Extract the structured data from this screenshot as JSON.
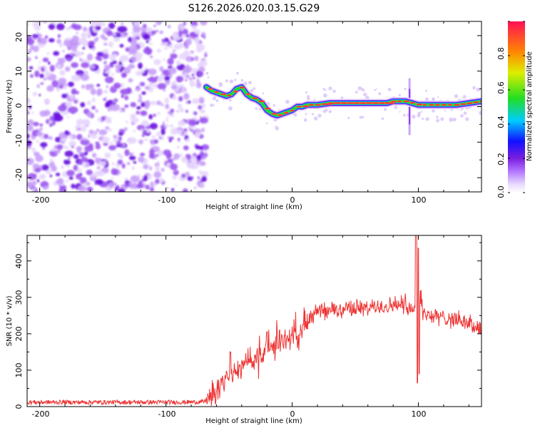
{
  "title": "S126.2026.020.03.15.G29",
  "chart_data": [
    {
      "type": "heatmap",
      "xlabel": "Height of straight line (km)",
      "ylabel": "Frequency (Hz)",
      "xlim": [
        -210,
        150
      ],
      "ylim": [
        -24,
        24
      ],
      "xticks": [
        "-200",
        "-100",
        "0",
        "100"
      ],
      "yticks": [
        "-20",
        "-10",
        "0",
        "10",
        "20"
      ],
      "noise_region_x": [
        -210,
        -68
      ],
      "ridge": {
        "x": [
          -68,
          -64,
          -60,
          -56,
          -52,
          -48,
          -44,
          -40,
          -36,
          -32,
          -28,
          -24,
          -20,
          -16,
          -12,
          -8,
          -4,
          0,
          4,
          8,
          12,
          16,
          20,
          30,
          40,
          50,
          60,
          70,
          75,
          80,
          85,
          90,
          95,
          100,
          105,
          110,
          120,
          130,
          140,
          150
        ],
        "y": [
          5.5,
          4.5,
          4.0,
          3.5,
          3.0,
          3.5,
          5.0,
          5.5,
          3.5,
          2.5,
          2.0,
          1.0,
          -1.0,
          -2.0,
          -2.5,
          -2.0,
          -1.5,
          -1.0,
          0.0,
          0.0,
          0.5,
          0.5,
          0.5,
          1.0,
          1.0,
          1.0,
          1.0,
          1.0,
          1.0,
          1.5,
          1.5,
          1.5,
          1.0,
          0.5,
          0.5,
          0.5,
          0.5,
          0.5,
          1.0,
          1.5
        ]
      },
      "colorbar": {
        "label": "Normalized spectral amplitude",
        "range": [
          0.0,
          1.0
        ],
        "ticks": [
          "0.0",
          "0.2",
          "0.4",
          "0.6",
          "0.8"
        ]
      }
    },
    {
      "type": "line",
      "xlabel": "Height of straight line (km)",
      "ylabel": "SNR (10 * v/v)",
      "xlim": [
        -210,
        150
      ],
      "ylim": [
        0,
        470
      ],
      "xticks": [
        "-200",
        "-100",
        "0",
        "100"
      ],
      "yticks": [
        "0",
        "100",
        "200",
        "300",
        "400"
      ],
      "series": [
        {
          "name": "SNR",
          "color": "#ee3333",
          "x": [
            -210,
            -180,
            -150,
            -120,
            -90,
            -70,
            -65,
            -60,
            -55,
            -50,
            -45,
            -40,
            -35,
            -30,
            -25,
            -20,
            -15,
            -10,
            -5,
            0,
            5,
            10,
            15,
            20,
            25,
            30,
            40,
            50,
            60,
            70,
            80,
            85,
            90,
            95,
            100,
            105,
            110,
            120,
            130,
            140,
            150
          ],
          "y": [
            12,
            12,
            12,
            12,
            12,
            13,
            25,
            50,
            75,
            90,
            100,
            110,
            120,
            130,
            145,
            155,
            165,
            175,
            185,
            195,
            205,
            220,
            240,
            258,
            262,
            265,
            268,
            270,
            272,
            275,
            278,
            280,
            285,
            270,
            265,
            255,
            250,
            245,
            240,
            230,
            210
          ]
        }
      ]
    }
  ],
  "colors": {
    "line": "#ee3333",
    "axes": "#000000",
    "noise": "#7a1ee0"
  }
}
